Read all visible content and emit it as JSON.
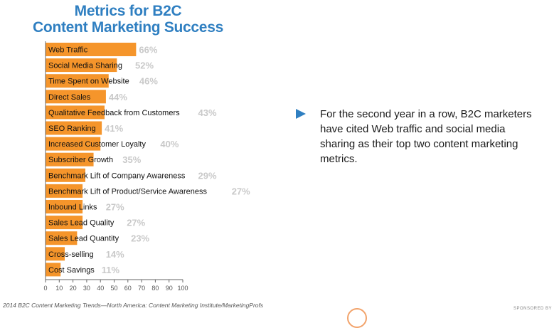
{
  "title_lines": [
    "Metrics for B2C",
    "Content Marketing Success"
  ],
  "callout": {
    "icon": "triangle-arrow-icon",
    "text": "For the second year in a row, B2C marketers have cited Web traffic and social media sharing as their top two content marketing metrics."
  },
  "source": "2014 B2C Content Marketing Trends—North America: Content Marketing Institute/MarketingProfs",
  "sponsor_label": "SPONSORED BY",
  "colors": {
    "title": "#2f7fc1",
    "bar": "#f5952b",
    "value_label": "#c9c9c9",
    "callout_arrow": "#2f7fc1"
  },
  "chart_data": {
    "type": "bar",
    "orientation": "horizontal",
    "title": "Metrics for B2C Content Marketing Success",
    "categories": [
      "Web Traffic",
      "Social Media Sharing",
      "Time Spent on Website",
      "Direct Sales",
      "Qualitative Feedback from Customers",
      "SEO Ranking",
      "Increased Customer Loyalty",
      "Subscriber Growth",
      "Benchmark Lift of Company Awareness",
      "Benchmark Lift of Product/Service Awareness",
      "Inbound Links",
      "Sales Lead Quality",
      "Sales Lead Quantity",
      "Cross-selling",
      "Cost Savings"
    ],
    "values": [
      66,
      52,
      46,
      44,
      43,
      41,
      40,
      35,
      29,
      27,
      27,
      27,
      23,
      14,
      11
    ],
    "value_labels": [
      "66%",
      "52%",
      "46%",
      "44%",
      "43%",
      "41%",
      "40%",
      "35%",
      "29%",
      "27%",
      "27%",
      "27%",
      "23%",
      "14%",
      "11%"
    ],
    "xlim": [
      0,
      100
    ],
    "xticks": [
      0,
      10,
      20,
      30,
      40,
      50,
      60,
      70,
      80,
      90,
      100
    ],
    "grid": false,
    "legend": "none"
  }
}
